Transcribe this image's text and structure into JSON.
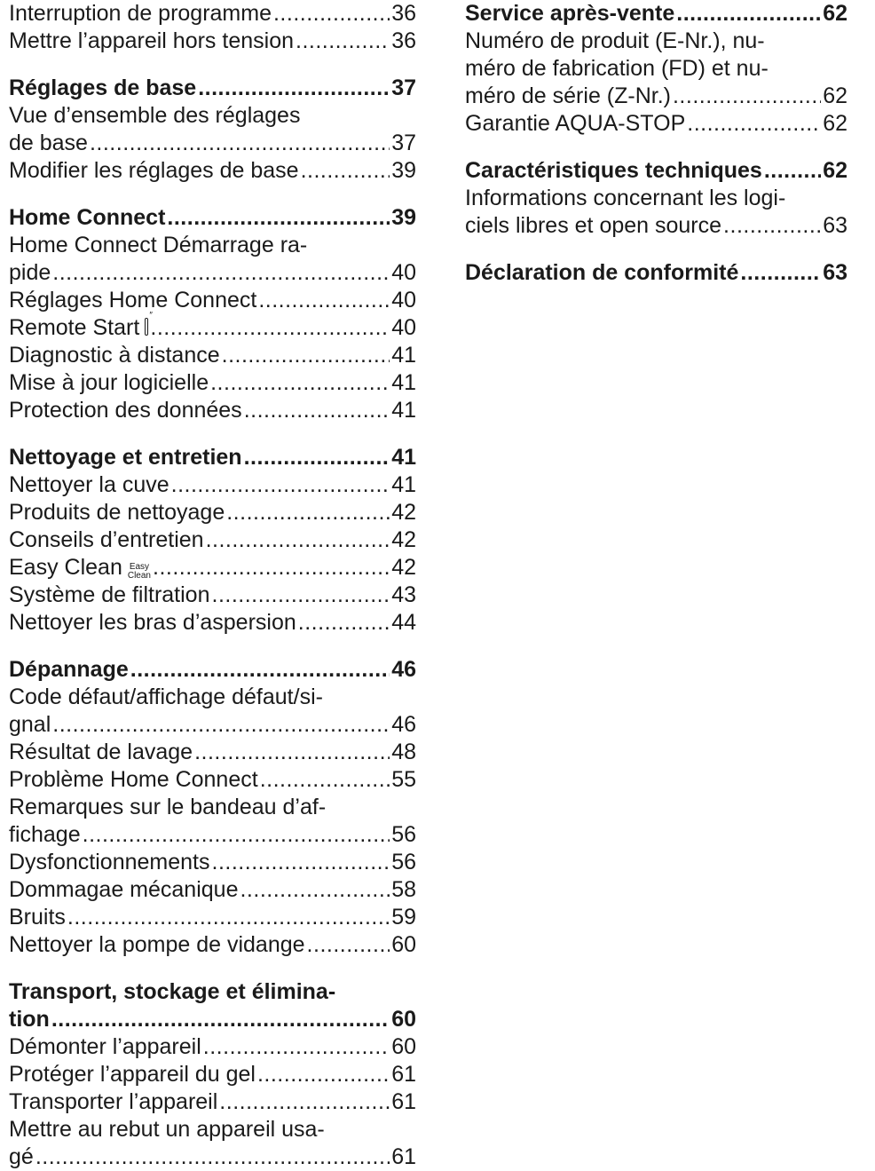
{
  "left_column": [
    {
      "type": "entries",
      "entries": [
        {
          "lines": [
            {
              "text": "Interruption de programme",
              "page": "36"
            }
          ]
        },
        {
          "lines": [
            {
              "text": "Mettre l’appareil hors tension",
              "page": "36"
            }
          ]
        }
      ]
    },
    {
      "type": "section",
      "heading": {
        "text": "Réglages de base",
        "page": "37"
      },
      "entries": [
        {
          "lines": [
            {
              "text": "Vue d’ensemble des réglages"
            },
            {
              "text": "de base",
              "page": "37"
            }
          ]
        },
        {
          "lines": [
            {
              "text": "Modifier les réglages de base",
              "page": "39"
            }
          ]
        }
      ]
    },
    {
      "type": "section",
      "heading": {
        "text": "Home Connect",
        "page": "39"
      },
      "entries": [
        {
          "lines": [
            {
              "text": "Home Connect Démarrage ra-"
            },
            {
              "text": "pide",
              "page": "40"
            }
          ]
        },
        {
          "lines": [
            {
              "text": "Réglages Home Connect",
              "page": "40"
            }
          ]
        },
        {
          "lines": [
            {
              "text": "Remote Start",
              "page": "40",
              "icon": "remote-start-icon"
            }
          ]
        },
        {
          "lines": [
            {
              "text": "Diagnostic à distance",
              "page": "41"
            }
          ]
        },
        {
          "lines": [
            {
              "text": "Mise à jour logicielle",
              "page": "41"
            }
          ]
        },
        {
          "lines": [
            {
              "text": "Protection des données",
              "page": "41"
            }
          ]
        }
      ]
    },
    {
      "type": "section",
      "heading": {
        "text": "Nettoyage et entretien",
        "page": "41"
      },
      "entries": [
        {
          "lines": [
            {
              "text": "Nettoyer la cuve",
              "page": "41"
            }
          ]
        },
        {
          "lines": [
            {
              "text": "Produits de nettoyage",
              "page": "42"
            }
          ]
        },
        {
          "lines": [
            {
              "text": "Conseils d’entretien",
              "page": "42"
            }
          ]
        },
        {
          "lines": [
            {
              "text": "Easy Clean",
              "page": "42",
              "icon": "easy-clean-icon",
              "icon_text": [
                "Easy",
                "Clean"
              ]
            }
          ]
        },
        {
          "lines": [
            {
              "text": "Système de filtration",
              "page": "43"
            }
          ]
        },
        {
          "lines": [
            {
              "text": "Nettoyer les bras d’aspersion",
              "page": "44"
            }
          ]
        }
      ]
    },
    {
      "type": "section",
      "heading": {
        "text": "Dépannage",
        "page": "46"
      },
      "entries": [
        {
          "lines": [
            {
              "text": "Code défaut/affichage défaut/si-"
            },
            {
              "text": "gnal",
              "page": "46"
            }
          ]
        },
        {
          "lines": [
            {
              "text": "Résultat de lavage",
              "page": "48"
            }
          ]
        },
        {
          "lines": [
            {
              "text": "Problème Home Connect",
              "page": "55"
            }
          ]
        },
        {
          "lines": [
            {
              "text": "Remarques sur le bandeau d’af-"
            },
            {
              "text": "fichage",
              "page": "56"
            }
          ]
        },
        {
          "lines": [
            {
              "text": "Dysfonctionnements",
              "page": "56"
            }
          ]
        },
        {
          "lines": [
            {
              "text": "Dommagae mécanique",
              "page": "58"
            }
          ]
        },
        {
          "lines": [
            {
              "text": "Bruits",
              "page": "59"
            }
          ]
        },
        {
          "lines": [
            {
              "text": "Nettoyer la pompe de vidange",
              "page": "60"
            }
          ]
        }
      ]
    },
    {
      "type": "section",
      "heading_lines": [
        {
          "text": "Transport, stockage et élimina-"
        },
        {
          "text": "tion",
          "page": "60"
        }
      ],
      "entries": [
        {
          "lines": [
            {
              "text": "Démonter l’appareil",
              "page": "60"
            }
          ]
        },
        {
          "lines": [
            {
              "text": "Protéger l’appareil du gel",
              "page": "61"
            }
          ]
        },
        {
          "lines": [
            {
              "text": "Transporter l’appareil",
              "page": "61"
            }
          ]
        },
        {
          "lines": [
            {
              "text": "Mettre au rebut un appareil usa-"
            },
            {
              "text": "gé",
              "page": "61"
            }
          ]
        }
      ]
    }
  ],
  "right_column": [
    {
      "type": "section",
      "heading": {
        "text": "Service après-vente",
        "page": "62"
      },
      "entries": [
        {
          "lines": [
            {
              "text": "Numéro de produit (E-Nr.), nu-"
            },
            {
              "text": "méro de fabrication (FD) et nu-"
            },
            {
              "text": "méro de série (Z-Nr.)",
              "page": "62"
            }
          ]
        },
        {
          "lines": [
            {
              "text": "Garantie AQUA-STOP",
              "page": "62"
            }
          ]
        }
      ]
    },
    {
      "type": "section",
      "heading": {
        "text": "Caractéristiques techniques",
        "page": "62"
      },
      "entries": [
        {
          "lines": [
            {
              "text": "Informations concernant les logi-"
            },
            {
              "text": "ciels libres et open source",
              "page": "63"
            }
          ]
        }
      ]
    },
    {
      "type": "section",
      "heading": {
        "text": "Déclaration de conformité",
        "page": "63"
      },
      "entries": []
    }
  ]
}
